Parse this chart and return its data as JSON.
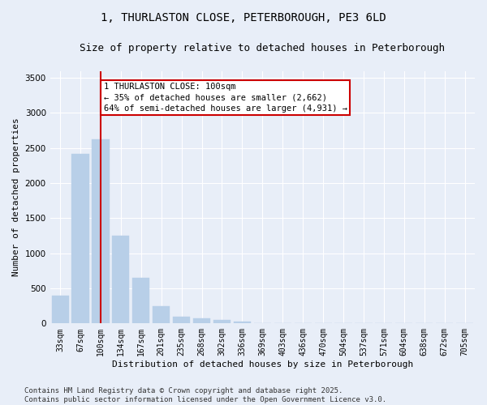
{
  "title_line1": "1, THURLASTON CLOSE, PETERBOROUGH, PE3 6LD",
  "title_line2": "Size of property relative to detached houses in Peterborough",
  "xlabel": "Distribution of detached houses by size in Peterborough",
  "ylabel": "Number of detached properties",
  "categories": [
    "33sqm",
    "67sqm",
    "100sqm",
    "134sqm",
    "167sqm",
    "201sqm",
    "235sqm",
    "268sqm",
    "302sqm",
    "336sqm",
    "369sqm",
    "403sqm",
    "436sqm",
    "470sqm",
    "504sqm",
    "537sqm",
    "571sqm",
    "604sqm",
    "638sqm",
    "672sqm",
    "705sqm"
  ],
  "values": [
    400,
    2420,
    2620,
    1250,
    650,
    250,
    100,
    70,
    55,
    30,
    5,
    2,
    1,
    1,
    0,
    0,
    0,
    0,
    0,
    0,
    0
  ],
  "bar_color": "#b8cfe8",
  "bar_edge_color": "#b8cfe8",
  "vline_color": "#cc0000",
  "vline_index": 2,
  "annotation_text": "1 THURLASTON CLOSE: 100sqm\n← 35% of detached houses are smaller (2,662)\n64% of semi-detached houses are larger (4,931) →",
  "annotation_box_facecolor": "#ffffff",
  "annotation_box_edgecolor": "#cc0000",
  "ylim": [
    0,
    3600
  ],
  "yticks": [
    0,
    500,
    1000,
    1500,
    2000,
    2500,
    3000,
    3500
  ],
  "footer_line1": "Contains HM Land Registry data © Crown copyright and database right 2025.",
  "footer_line2": "Contains public sector information licensed under the Open Government Licence v3.0.",
  "bg_color": "#e8eef8",
  "plot_bg_color": "#e8eef8",
  "grid_color": "#ffffff",
  "title_fontsize": 10,
  "subtitle_fontsize": 9,
  "axis_label_fontsize": 8,
  "tick_fontsize": 7,
  "footer_fontsize": 6.5,
  "annotation_fontsize": 7.5
}
